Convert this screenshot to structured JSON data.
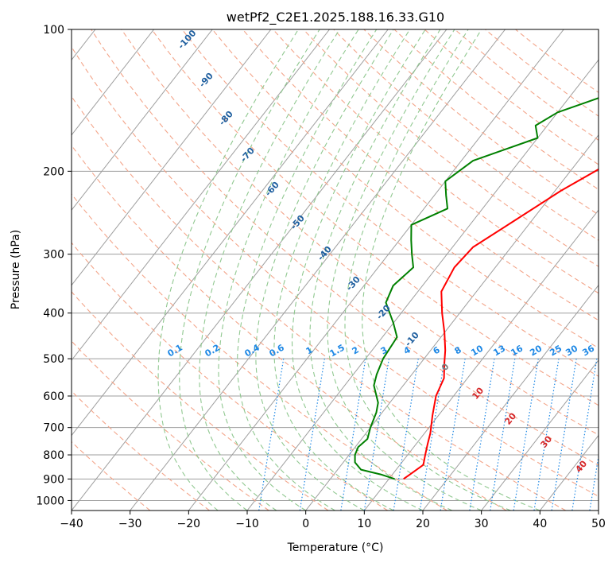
{
  "chart_data": {
    "type": "line",
    "subtype": "skew-t log-p",
    "title": "wetPf2_C2E1.2025.188.16.33.G10",
    "xlabel": "Temperature (°C)",
    "ylabel": "Pressure (hPa)",
    "xlim": [
      -40,
      50
    ],
    "ylim": [
      1050,
      100
    ],
    "y_scale": "log",
    "x_ticks": [
      "−40",
      "−30",
      "−20",
      "−10",
      "0",
      "10",
      "20",
      "30",
      "40",
      "50"
    ],
    "y_ticks": [
      "100",
      "200",
      "300",
      "400",
      "500",
      "600",
      "700",
      "800",
      "900",
      "1000"
    ],
    "grid": true,
    "series": [
      {
        "name": "",
        "color": "#ff0000",
        "x": [
          12.5,
          13.0,
          14.0,
          13.0,
          12.0,
          11.0,
          9.0,
          7.0,
          6.0,
          4.0,
          2.5,
          0.0,
          -3.0,
          -6.0,
          -7.0,
          -6.5,
          -3.0,
          1.0,
          6.0,
          12.0,
          17.0,
          21.0,
          22.5
        ],
        "y": [
          900,
          880,
          840,
          800,
          760,
          720,
          660,
          600,
          550,
          510,
          480,
          440,
          400,
          360,
          320,
          290,
          255,
          220,
          190,
          160,
          130,
          110,
          100
        ]
      },
      {
        "name": "",
        "color": "#008000",
        "x": [
          11.0,
          8.0,
          4.0,
          2.0,
          1.0,
          0.5,
          1.0,
          0.0,
          -1.0,
          -2.0,
          -5.0,
          -6.0,
          -7.0,
          -7.5,
          -10.0,
          -14.0,
          -15.0,
          -14.0,
          -16.0,
          -18.0,
          -20.0,
          -16.0,
          -18.0,
          -20.0,
          -18.0,
          -10.0,
          -12.0,
          -10.0,
          -5.0,
          0.0,
          5.0,
          12.0,
          20.0
        ],
        "x_note": "",
        "y": [
          900,
          880,
          860,
          830,
          800,
          770,
          740,
          700,
          650,
          620,
          570,
          540,
          500,
          450,
          420,
          380,
          350,
          320,
          300,
          280,
          260,
          240,
          225,
          210,
          190,
          170,
          160,
          150,
          140,
          130,
          120,
          110,
          100
        ]
      }
    ],
    "dry_adiabat_labels": [
      "-100",
      "-90",
      "-80",
      "-70",
      "-60",
      "-50",
      "-40",
      "-30",
      "-20",
      "-10"
    ],
    "mixing_ratio_labels": [
      "0.1",
      "0.2",
      "0.4",
      "0.6",
      "1",
      "1.5",
      "2",
      "3",
      "4",
      "6",
      "8",
      "10",
      "13",
      "16",
      "20",
      "25",
      "30",
      "36"
    ],
    "moist_adiabat_labels": [
      "0",
      "10",
      "20",
      "30",
      "40"
    ],
    "colors": {
      "isotherm": "#9e9e9e",
      "isobar": "#9e9e9e",
      "dry_adiabat": "#f3a58a",
      "moist_adiabat": "#90c890",
      "mixing_ratio": "#1e88e5",
      "mixing_label": "#1e88e5",
      "dry_label": "#1f5f9f",
      "moist_label_zero": "#7f7f7f",
      "moist_label": "#d62728",
      "temperature": "#ff0000",
      "dewpoint": "#008000"
    }
  }
}
